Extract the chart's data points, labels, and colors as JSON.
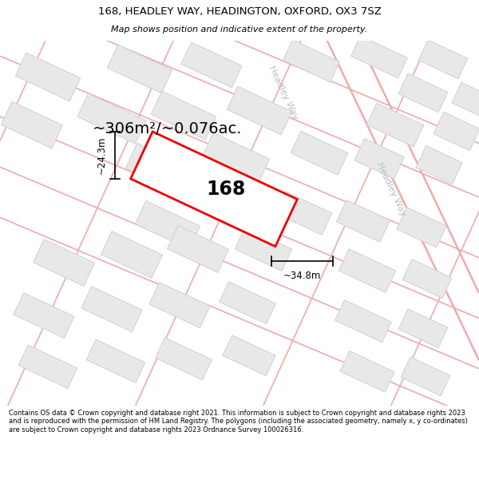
{
  "title": "168, HEADLEY WAY, HEADINGTON, OXFORD, OX3 7SZ",
  "subtitle": "Map shows position and indicative extent of the property.",
  "area_text": "~306m²/~0.076ac.",
  "property_label": "168",
  "dim_width": "~34.8m",
  "dim_height": "~24.3m",
  "footer": "Contains OS data © Crown copyright and database right 2021. This information is subject to Crown copyright and database rights 2023 and is reproduced with the permission of HM Land Registry. The polygons (including the associated geometry, namely x, y co-ordinates) are subject to Crown copyright and database rights 2023 Ordnance Survey 100026316.",
  "bg_color": "#ffffff",
  "map_bg": "#ffffff",
  "road_color": "#f2aaaa",
  "building_color": "#e8e8e8",
  "building_edge": "#d0d0d0",
  "street_label_color": "#bbbbbb",
  "property_color": "#ee0000",
  "dim_color": "#000000",
  "title_color": "#000000",
  "footer_color": "#000000",
  "title_fontsize": 9.5,
  "subtitle_fontsize": 8.0,
  "area_fontsize": 14,
  "label_fontsize": 17,
  "footer_fontsize": 6.0,
  "dim_fontsize": 8.5
}
